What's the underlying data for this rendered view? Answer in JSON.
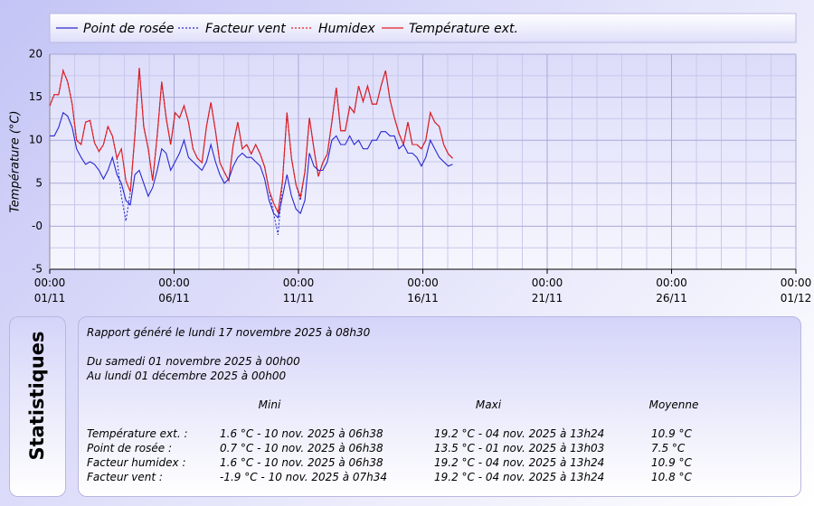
{
  "chart_data": {
    "type": "line",
    "y_label": "Température (°C)",
    "xlim": [
      0,
      30
    ],
    "ylim": [
      -5,
      20
    ],
    "xticks": [
      {
        "value": 0,
        "label": "00:00\n01/11"
      },
      {
        "value": 5,
        "label": "00:00\n06/11"
      },
      {
        "value": 10,
        "label": "00:00\n11/11"
      },
      {
        "value": 15,
        "label": "00:00\n16/11"
      },
      {
        "value": 20,
        "label": "00:00\n21/11"
      },
      {
        "value": 25,
        "label": "00:00\n26/11"
      },
      {
        "value": 30,
        "label": "00:00\n01/12"
      }
    ],
    "yticks": [
      20,
      15,
      10,
      5,
      {
        "value": 0,
        "label": "-0"
      },
      -5
    ],
    "xminor": [
      1,
      2,
      3,
      4,
      6,
      7,
      8,
      9,
      11,
      12,
      13,
      14,
      16,
      17,
      18,
      19,
      21,
      22,
      23,
      24,
      26,
      27,
      28,
      29
    ],
    "yminor": [
      17.5,
      12.5,
      7.5,
      2.5,
      -2.5
    ],
    "grid": true,
    "x": [
      0,
      0.18,
      0.36,
      0.54,
      0.72,
      0.9,
      1.08,
      1.26,
      1.44,
      1.62,
      1.8,
      1.98,
      2.16,
      2.34,
      2.52,
      2.7,
      2.88,
      3.06,
      3.24,
      3.42,
      3.6,
      3.78,
      3.96,
      4.14,
      4.32,
      4.5,
      4.68,
      4.86,
      5.04,
      5.22,
      5.4,
      5.58,
      5.76,
      5.94,
      6.12,
      6.3,
      6.48,
      6.66,
      6.84,
      7.02,
      7.2,
      7.38,
      7.56,
      7.74,
      7.92,
      8.1,
      8.28,
      8.46,
      8.64,
      8.82,
      9.0,
      9.18,
      9.36,
      9.54,
      9.72,
      9.9,
      10.08,
      10.26,
      10.44,
      10.62,
      10.8,
      10.98,
      11.16,
      11.34,
      11.52,
      11.7,
      11.88,
      12.06,
      12.24,
      12.42,
      12.6,
      12.78,
      12.96,
      13.14,
      13.32,
      13.5,
      13.68,
      13.86,
      14.04,
      14.22,
      14.4,
      14.58,
      14.76,
      14.94,
      15.12,
      15.3,
      15.48,
      15.66,
      15.84,
      16.02,
      16.2
    ],
    "series": [
      {
        "name": "Point de rosée",
        "color": "#2828d0",
        "style": "solid",
        "values": [
          10.5,
          10.5,
          11.5,
          13.2,
          12.8,
          11.5,
          9.0,
          8.0,
          7.2,
          7.5,
          7.2,
          6.5,
          5.5,
          6.5,
          8.0,
          6.0,
          5.0,
          3.0,
          2.5,
          6.0,
          6.5,
          5.0,
          3.5,
          4.5,
          6.5,
          9.0,
          8.5,
          6.5,
          7.5,
          8.5,
          10.0,
          8.0,
          7.5,
          7.0,
          6.5,
          7.5,
          9.5,
          7.5,
          6.0,
          5.0,
          5.5,
          7.0,
          8.0,
          8.5,
          8.0,
          8.0,
          7.5,
          7.0,
          5.5,
          3.0,
          1.5,
          1.0,
          3.5,
          6.0,
          3.5,
          2.0,
          1.5,
          3.0,
          8.5,
          7.0,
          6.5,
          6.5,
          7.5,
          10.0,
          10.5,
          9.5,
          9.5,
          10.5,
          9.5,
          10.0,
          9.0,
          9.0,
          10.0,
          10.0,
          11.0,
          11.0,
          10.5,
          10.5,
          9.0,
          9.5,
          8.5,
          8.5,
          8.0,
          7.0,
          8.0,
          10.0,
          9.0,
          8.0,
          7.5,
          7.0,
          7.2
        ]
      },
      {
        "name": "Facteur vent",
        "color": "#2828d0",
        "style": "dotted",
        "values": [
          14.0,
          15.3,
          15.3,
          18.1,
          16.8,
          14.2,
          10.0,
          9.5,
          12.1,
          12.3,
          9.7,
          8.7,
          9.5,
          11.6,
          10.5,
          7.9,
          3.5,
          0.6,
          4.0,
          10.5,
          18.4,
          11.6,
          9.0,
          5.3,
          10.5,
          16.8,
          12.6,
          9.5,
          13.2,
          12.6,
          14.0,
          12.1,
          9.0,
          7.9,
          7.4,
          11.6,
          14.4,
          11.1,
          7.4,
          6.3,
          5.3,
          9.5,
          12.1,
          9.0,
          9.5,
          8.4,
          9.5,
          8.4,
          6.9,
          4.2,
          1.5,
          -1.0,
          5.3,
          13.2,
          7.9,
          4.8,
          3.0,
          6.3,
          12.6,
          9.0,
          5.8,
          7.4,
          8.4,
          12.1,
          16.1,
          11.1,
          11.1,
          13.9,
          13.2,
          16.3,
          14.5,
          16.3,
          14.2,
          14.2,
          16.3,
          18.1,
          14.7,
          12.6,
          10.8,
          9.5,
          12.1,
          9.5,
          9.5,
          9.0,
          10.0,
          13.2,
          12.1,
          11.6,
          9.5,
          8.4,
          7.9
        ]
      },
      {
        "name": "Humidex",
        "color": "#e02020",
        "style": "dotted",
        "values": [
          14.0,
          15.3,
          15.3,
          18.1,
          16.8,
          14.2,
          10.0,
          9.5,
          12.1,
          12.3,
          9.7,
          8.7,
          9.5,
          11.6,
          10.5,
          7.9,
          9.0,
          5.3,
          4.0,
          10.5,
          18.4,
          11.6,
          9.0,
          5.3,
          10.5,
          16.8,
          12.6,
          9.5,
          13.2,
          12.6,
          14.0,
          12.1,
          9.0,
          7.9,
          7.4,
          11.6,
          14.4,
          11.1,
          7.4,
          6.3,
          5.3,
          9.5,
          12.1,
          9.0,
          9.5,
          8.4,
          9.5,
          8.4,
          6.9,
          4.2,
          2.7,
          1.6,
          5.3,
          13.2,
          7.9,
          4.8,
          3.4,
          6.3,
          12.6,
          9.0,
          5.8,
          7.4,
          8.4,
          12.1,
          16.1,
          11.1,
          11.1,
          13.9,
          13.2,
          16.3,
          14.5,
          16.3,
          14.2,
          14.2,
          16.3,
          18.1,
          14.7,
          12.6,
          10.8,
          9.5,
          12.1,
          9.5,
          9.5,
          9.0,
          10.0,
          13.2,
          12.1,
          11.6,
          9.5,
          8.4,
          7.9
        ]
      },
      {
        "name": "Température ext.",
        "color": "#e02020",
        "style": "solid",
        "values": [
          14.0,
          15.3,
          15.3,
          18.1,
          16.8,
          14.2,
          10.0,
          9.5,
          12.1,
          12.3,
          9.7,
          8.7,
          9.5,
          11.6,
          10.5,
          7.9,
          9.0,
          5.3,
          4.0,
          10.5,
          18.4,
          11.6,
          9.0,
          5.3,
          10.5,
          16.8,
          12.6,
          9.5,
          13.2,
          12.6,
          14.0,
          12.1,
          9.0,
          7.9,
          7.4,
          11.6,
          14.4,
          11.1,
          7.4,
          6.3,
          5.3,
          9.5,
          12.1,
          9.0,
          9.5,
          8.4,
          9.5,
          8.4,
          6.9,
          4.2,
          2.7,
          1.6,
          5.3,
          13.2,
          7.9,
          4.8,
          3.4,
          6.3,
          12.6,
          9.0,
          5.8,
          7.4,
          8.4,
          12.1,
          16.1,
          11.1,
          11.1,
          13.9,
          13.2,
          16.3,
          14.5,
          16.3,
          14.2,
          14.2,
          16.3,
          18.1,
          14.7,
          12.6,
          10.8,
          9.5,
          12.1,
          9.5,
          9.5,
          9.0,
          10.0,
          13.2,
          12.1,
          11.6,
          9.5,
          8.4,
          7.9
        ]
      }
    ]
  },
  "stats": {
    "title": "Statistiques",
    "generated": "Rapport généré le lundi 17 novembre 2025 à 08h30",
    "from": "Du samedi 01 novembre 2025 à 00h00",
    "to": "Au lundi 01 décembre 2025 à 00h00",
    "columns": [
      "Mini",
      "Maxi",
      "Moyenne"
    ],
    "rows": [
      [
        "Température ext. :",
        "1.6 °C - 10 nov. 2025 à 06h38",
        "19.2 °C - 04 nov. 2025 à 13h24",
        "10.9 °C"
      ],
      [
        "Point de rosée :",
        "0.7 °C - 10 nov. 2025 à 06h38",
        "13.5 °C - 01 nov. 2025 à 13h03",
        "7.5 °C"
      ],
      [
        "Facteur humidex :",
        "1.6 °C - 10 nov. 2025 à 06h38",
        "19.2 °C - 04 nov. 2025 à 13h24",
        "10.9 °C"
      ],
      [
        "Facteur vent :",
        "-1.9 °C - 10 nov. 2025 à 07h34",
        "19.2 °C - 04 nov. 2025 à 13h24",
        "10.8 °C"
      ]
    ]
  }
}
